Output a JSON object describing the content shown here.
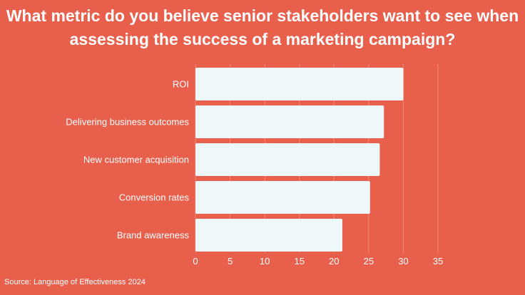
{
  "chart_data": {
    "type": "bar",
    "orientation": "horizontal",
    "title": "What metric do you believe senior stakeholders want to see when assessing the success of a marketing campaign?",
    "categories": [
      "ROI",
      "Delivering business outcomes",
      "New customer acquisition",
      "Conversion rates",
      "Brand awareness"
    ],
    "values": [
      30,
      27.2,
      26.6,
      25.2,
      21.2
    ],
    "xlim": [
      0,
      35
    ],
    "xticks": [
      0,
      5,
      10,
      15,
      20,
      25,
      30,
      35
    ],
    "grid": true,
    "legend": "none"
  },
  "source": "Source: Language of Effectiveness 2024",
  "colors": {
    "background": "#E8604C",
    "bar": "#EEF8FB",
    "text": "#FFFFFF",
    "grid": "#F08A7A"
  }
}
